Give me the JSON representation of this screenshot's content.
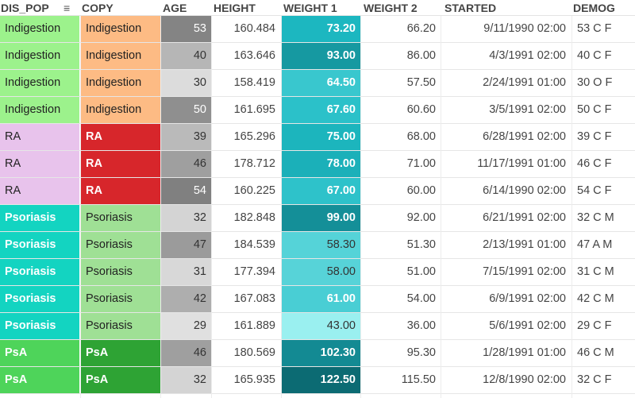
{
  "columns": [
    {
      "key": "dis_pop",
      "label": "DIS_POP"
    },
    {
      "key": "copy",
      "label": "COPY"
    },
    {
      "key": "age",
      "label": "AGE"
    },
    {
      "key": "height",
      "label": "HEIGHT"
    },
    {
      "key": "weight1",
      "label": "WEIGHT 1"
    },
    {
      "key": "weight2",
      "label": "WEIGHT 2"
    },
    {
      "key": "started",
      "label": "STARTED"
    },
    {
      "key": "demog",
      "label": "DEMOG"
    }
  ],
  "menu_icon": "hamburger-menu-icon",
  "category_colors": {
    "Indigestion": {
      "dis_pop_bg": "#9cf28c",
      "dis_pop_fg": "#222222",
      "copy_bg": "#fdbb84",
      "copy_fg": "#222222"
    },
    "RA": {
      "dis_pop_bg": "#e8c3ec",
      "dis_pop_fg": "#222222",
      "copy_bg": "#d7262b",
      "copy_fg": "#ffffff"
    },
    "Psoriasis": {
      "dis_pop_bg": "#13d4c1",
      "dis_pop_fg": "#ffffff",
      "copy_bg": "#9fe095",
      "copy_fg": "#222222"
    },
    "PsA": {
      "dis_pop_bg": "#4ed45a",
      "dis_pop_fg": "#ffffff",
      "copy_bg": "#2ea334",
      "copy_fg": "#ffffff"
    }
  },
  "age_colors": {
    "low": "#e0e0e0",
    "high": "#808080",
    "min": 29,
    "max": 54
  },
  "weight1_colors": {
    "low": "#9af0f0",
    "mid": "#1dbbc4",
    "high": "#0c6b73",
    "min": 43.0,
    "max": 122.5
  },
  "rows": [
    {
      "dis_pop": "Indigestion",
      "copy": "Indigestion",
      "age": "53",
      "height": "160.484",
      "weight1": "73.20",
      "weight2": "66.20",
      "started": "9/11/1990 02:00",
      "demog": "53 C F"
    },
    {
      "dis_pop": "Indigestion",
      "copy": "Indigestion",
      "age": "40",
      "height": "163.646",
      "weight1": "93.00",
      "weight2": "86.00",
      "started": "4/3/1991 02:00",
      "demog": "40 C F"
    },
    {
      "dis_pop": "Indigestion",
      "copy": "Indigestion",
      "age": "30",
      "height": "158.419",
      "weight1": "64.50",
      "weight2": "57.50",
      "started": "2/24/1991 01:00",
      "demog": "30 O F"
    },
    {
      "dis_pop": "Indigestion",
      "copy": "Indigestion",
      "age": "50",
      "height": "161.695",
      "weight1": "67.60",
      "weight2": "60.60",
      "started": "3/5/1991 02:00",
      "demog": "50 C F"
    },
    {
      "dis_pop": "RA",
      "copy": "RA",
      "age": "39",
      "height": "165.296",
      "weight1": "75.00",
      "weight2": "68.00",
      "started": "6/28/1991 02:00",
      "demog": "39 C F"
    },
    {
      "dis_pop": "RA",
      "copy": "RA",
      "age": "46",
      "height": "178.712",
      "weight1": "78.00",
      "weight2": "71.00",
      "started": "11/17/1991 01:00",
      "demog": "46 C F"
    },
    {
      "dis_pop": "RA",
      "copy": "RA",
      "age": "54",
      "height": "160.225",
      "weight1": "67.00",
      "weight2": "60.00",
      "started": "6/14/1990 02:00",
      "demog": "54 C F"
    },
    {
      "dis_pop": "Psoriasis",
      "copy": "Psoriasis",
      "age": "32",
      "height": "182.848",
      "weight1": "99.00",
      "weight2": "92.00",
      "started": "6/21/1991 02:00",
      "demog": "32 C M"
    },
    {
      "dis_pop": "Psoriasis",
      "copy": "Psoriasis",
      "age": "47",
      "height": "184.539",
      "weight1": "58.30",
      "weight2": "51.30",
      "started": "2/13/1991 01:00",
      "demog": "47 A M"
    },
    {
      "dis_pop": "Psoriasis",
      "copy": "Psoriasis",
      "age": "31",
      "height": "177.394",
      "weight1": "58.00",
      "weight2": "51.00",
      "started": "7/15/1991 02:00",
      "demog": "31 C M"
    },
    {
      "dis_pop": "Psoriasis",
      "copy": "Psoriasis",
      "age": "42",
      "height": "167.083",
      "weight1": "61.00",
      "weight2": "54.00",
      "started": "6/9/1991 02:00",
      "demog": "42 C M"
    },
    {
      "dis_pop": "Psoriasis",
      "copy": "Psoriasis",
      "age": "29",
      "height": "161.889",
      "weight1": "43.00",
      "weight2": "36.00",
      "started": "5/6/1991 02:00",
      "demog": "29 C F"
    },
    {
      "dis_pop": "PsA",
      "copy": "PsA",
      "age": "46",
      "height": "180.569",
      "weight1": "102.30",
      "weight2": "95.30",
      "started": "1/28/1991 01:00",
      "demog": "46 C M"
    },
    {
      "dis_pop": "PsA",
      "copy": "PsA",
      "age": "32",
      "height": "165.935",
      "weight1": "122.50",
      "weight2": "115.50",
      "started": "12/8/1990 02:00",
      "demog": "32 C F"
    }
  ]
}
